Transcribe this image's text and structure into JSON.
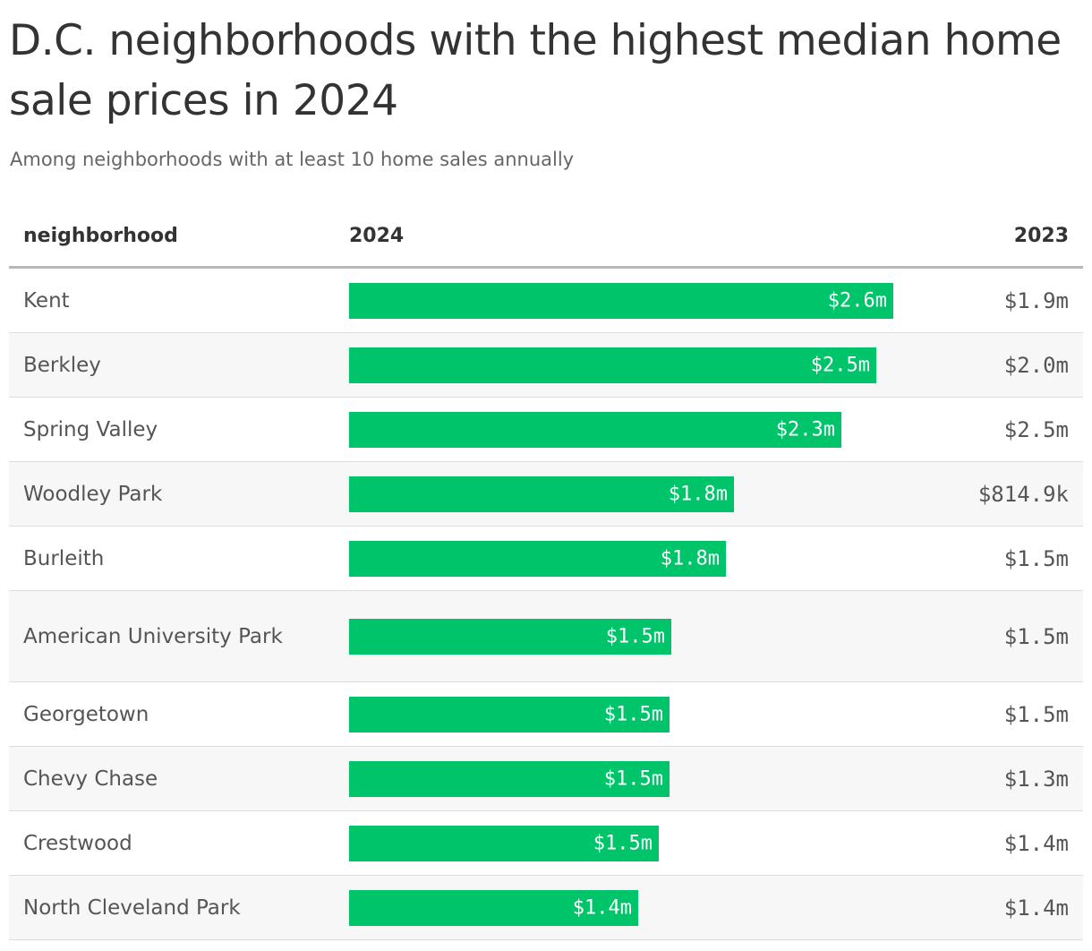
{
  "title": "D.C. neighborhoods with the highest median home sale prices in 2024",
  "subtitle": "Among neighborhoods with at least 10 home sales annually",
  "headers": {
    "neighborhood": "neighborhood",
    "y2024": "2024",
    "y2023": "2023"
  },
  "colors": {
    "bar": "#00c46a",
    "row_alt": "#f7f7f7",
    "text": "#333333"
  },
  "chart_data": {
    "type": "table",
    "columns": [
      "neighborhood",
      "2024",
      "2023"
    ],
    "rows": [
      {
        "neighborhood": "Kent",
        "label_2024": "$2.6m",
        "value_2024": 2.6,
        "label_2023": "$1.9m"
      },
      {
        "neighborhood": "Berkley",
        "label_2024": "$2.5m",
        "value_2024": 2.52,
        "label_2023": "$2.0m"
      },
      {
        "neighborhood": "Spring Valley",
        "label_2024": "$2.3m",
        "value_2024": 2.35,
        "label_2023": "$2.5m"
      },
      {
        "neighborhood": "Woodley Park",
        "label_2024": "$1.8m",
        "value_2024": 1.84,
        "label_2023": "$814.9k"
      },
      {
        "neighborhood": "Burleith",
        "label_2024": "$1.8m",
        "value_2024": 1.8,
        "label_2023": "$1.5m"
      },
      {
        "neighborhood": "American University Park",
        "label_2024": "$1.5m",
        "value_2024": 1.54,
        "label_2023": "$1.5m"
      },
      {
        "neighborhood": "Georgetown",
        "label_2024": "$1.5m",
        "value_2024": 1.53,
        "label_2023": "$1.5m"
      },
      {
        "neighborhood": "Chevy Chase",
        "label_2024": "$1.5m",
        "value_2024": 1.53,
        "label_2023": "$1.3m"
      },
      {
        "neighborhood": "Crestwood",
        "label_2024": "$1.5m",
        "value_2024": 1.48,
        "label_2023": "$1.4m"
      },
      {
        "neighborhood": "North Cleveland Park",
        "label_2024": "$1.4m",
        "value_2024": 1.38,
        "label_2023": "$1.4m"
      }
    ]
  }
}
